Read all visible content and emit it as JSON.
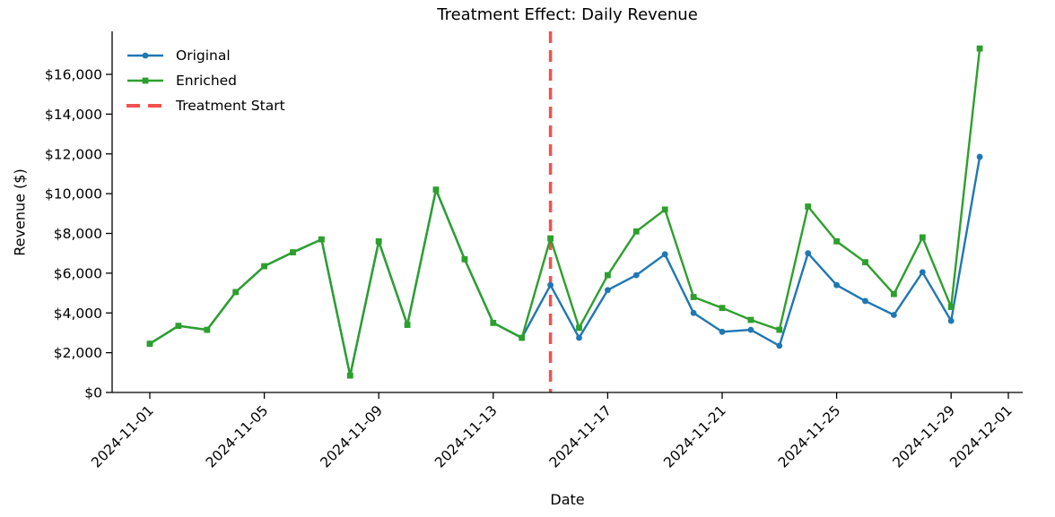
{
  "title": "Treatment Effect: Daily Revenue",
  "chart_data": {
    "type": "line",
    "title": "Treatment Effect: Daily Revenue",
    "xlabel": "Date",
    "ylabel": "Revenue ($)",
    "grid": false,
    "legend_position": "upper left",
    "x": [
      "2024-11-01",
      "2024-11-02",
      "2024-11-03",
      "2024-11-04",
      "2024-11-05",
      "2024-11-06",
      "2024-11-07",
      "2024-11-08",
      "2024-11-09",
      "2024-11-10",
      "2024-11-11",
      "2024-11-12",
      "2024-11-13",
      "2024-11-14",
      "2024-11-15",
      "2024-11-16",
      "2024-11-17",
      "2024-11-18",
      "2024-11-19",
      "2024-11-20",
      "2024-11-21",
      "2024-11-22",
      "2024-11-23",
      "2024-11-24",
      "2024-11-25",
      "2024-11-26",
      "2024-11-27",
      "2024-11-28",
      "2024-11-29",
      "2024-11-30"
    ],
    "series": [
      {
        "name": "Original",
        "color": "#1f77b4",
        "marker": "circle",
        "values": [
          2450,
          3350,
          3150,
          5050,
          6350,
          7050,
          7700,
          850,
          7600,
          3400,
          10200,
          6700,
          3500,
          2750,
          5400,
          2750,
          5150,
          5900,
          6950,
          4000,
          3050,
          3150,
          2350,
          7000,
          5400,
          4600,
          3900,
          6050,
          3600,
          11850
        ]
      },
      {
        "name": "Enriched",
        "color": "#2ca02c",
        "marker": "square",
        "values": [
          2450,
          3350,
          3150,
          5050,
          6350,
          7050,
          7700,
          850,
          7600,
          3400,
          10200,
          6700,
          3500,
          2750,
          7750,
          3250,
          5900,
          8100,
          9200,
          4800,
          4250,
          3650,
          3150,
          9350,
          7600,
          6550,
          4950,
          7800,
          4300,
          17300
        ]
      }
    ],
    "treatment_start": "2024-11-15",
    "treatment_line_color": "#f2514e",
    "x_tick_labels": [
      "2024-11-01",
      "2024-11-05",
      "2024-11-09",
      "2024-11-13",
      "2024-11-17",
      "2024-11-21",
      "2024-11-25",
      "2024-11-29",
      "2024-12-01"
    ],
    "y_ticks": [
      {
        "value": 0,
        "label": "$0"
      },
      {
        "value": 2000,
        "label": "$2,000"
      },
      {
        "value": 4000,
        "label": "$4,000"
      },
      {
        "value": 6000,
        "label": "$6,000"
      },
      {
        "value": 8000,
        "label": "$8,000"
      },
      {
        "value": 10000,
        "label": "$10,000"
      },
      {
        "value": 12000,
        "label": "$12,000"
      },
      {
        "value": 14000,
        "label": "$14,000"
      },
      {
        "value": 16000,
        "label": "$16,000"
      }
    ],
    "ylim": [
      0,
      18200
    ],
    "legend": [
      {
        "label": "Original",
        "color": "#1f77b4",
        "marker": "circle",
        "style": "solid"
      },
      {
        "label": "Enriched",
        "color": "#2ca02c",
        "marker": "square",
        "style": "solid"
      },
      {
        "label": "Treatment Start",
        "color": "#f2514e",
        "marker": "none",
        "style": "dashed"
      }
    ],
    "axis_color": "#000000"
  }
}
